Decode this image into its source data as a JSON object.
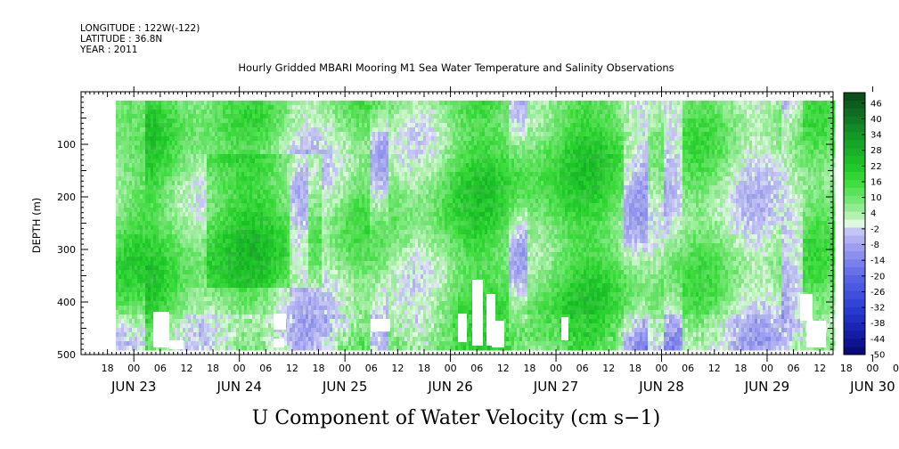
{
  "header": {
    "longitude": "LONGITUDE : 122W(-122)",
    "latitude": "LATITUDE : 36.8N",
    "year": "YEAR : 2011"
  },
  "chart_data": {
    "type": "heatmap",
    "title": "Hourly Gridded MBARI Mooring M1 Sea Water Temperature and Salinity Observations",
    "xlabel": "U Component of Water Velocity (cm s−1)",
    "ylabel": "DEPTH (m)",
    "ylim": [
      500,
      0
    ],
    "yticks": [
      100,
      200,
      300,
      400,
      500
    ],
    "hour_labels": [
      "18",
      "00",
      "06",
      "12",
      "18",
      "00",
      "06",
      "12",
      "18",
      "00",
      "06",
      "12",
      "18",
      "00",
      "06",
      "12",
      "18",
      "00",
      "06",
      "12",
      "18",
      "00",
      "06",
      "12",
      "18",
      "00",
      "06",
      "12",
      "18",
      "00",
      "06",
      "12"
    ],
    "day_labels": [
      "JUN 23",
      "JUN 24",
      "JUN 25",
      "JUN 26",
      "JUN 27",
      "JUN 28",
      "JUN 29",
      "JUN 30"
    ],
    "x_range_hours": [
      "2011-06-23 12:00",
      "2011-06-30 15:00"
    ],
    "data_extent": {
      "x_start": "2011-06-23 18:00",
      "x_end": "2011-06-30 15:00",
      "depth_top": 15,
      "depth_bottom": 490
    },
    "colorbar": {
      "min": -50,
      "max": 50,
      "step": 3,
      "labels": [
        "46",
        "40",
        "34",
        "28",
        "22",
        "16",
        "10",
        "4",
        "-2",
        "-8",
        "-14",
        "-20",
        "-26",
        "-32",
        "-38",
        "-44",
        "-50"
      ]
    },
    "dominant_values": "mostly 4 to 22 cm/s (green) with patches of -2 to -8 cm/s (light blue)",
    "missing_data": "white gaps near 400-490 m depth"
  }
}
